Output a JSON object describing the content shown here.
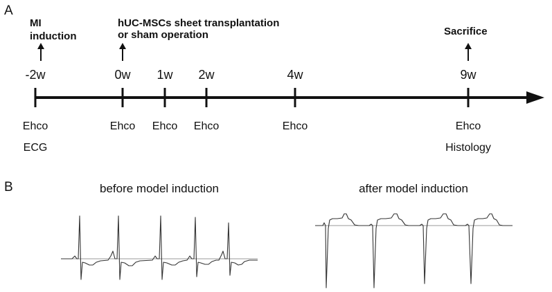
{
  "panel_a": {
    "label": "A",
    "events": [
      {
        "line1": "MI",
        "line2": "induction"
      },
      {
        "line1": "hUC-MSCs sheet transplantation",
        "line2": "or sham operation"
      },
      {
        "line1": "Sacrifice",
        "line2": ""
      }
    ],
    "ticks": [
      "-2w",
      "0w",
      "1w",
      "2w",
      "4w",
      "9w"
    ],
    "below": [
      {
        "line1": "Ehco",
        "line2": "ECG"
      },
      {
        "line1": "Ehco",
        "line2": ""
      },
      {
        "line1": "Ehco",
        "line2": ""
      },
      {
        "line1": "Ehco",
        "line2": ""
      },
      {
        "line1": "Ehco",
        "line2": ""
      },
      {
        "line1": "Ehco",
        "line2": "Histology"
      }
    ]
  },
  "panel_b": {
    "label": "B",
    "before_title": "before model induction",
    "after_title": "after model induction"
  },
  "colors": {
    "ink": "#111111",
    "trace": "#333333",
    "baseline": "#9a9a9a"
  }
}
